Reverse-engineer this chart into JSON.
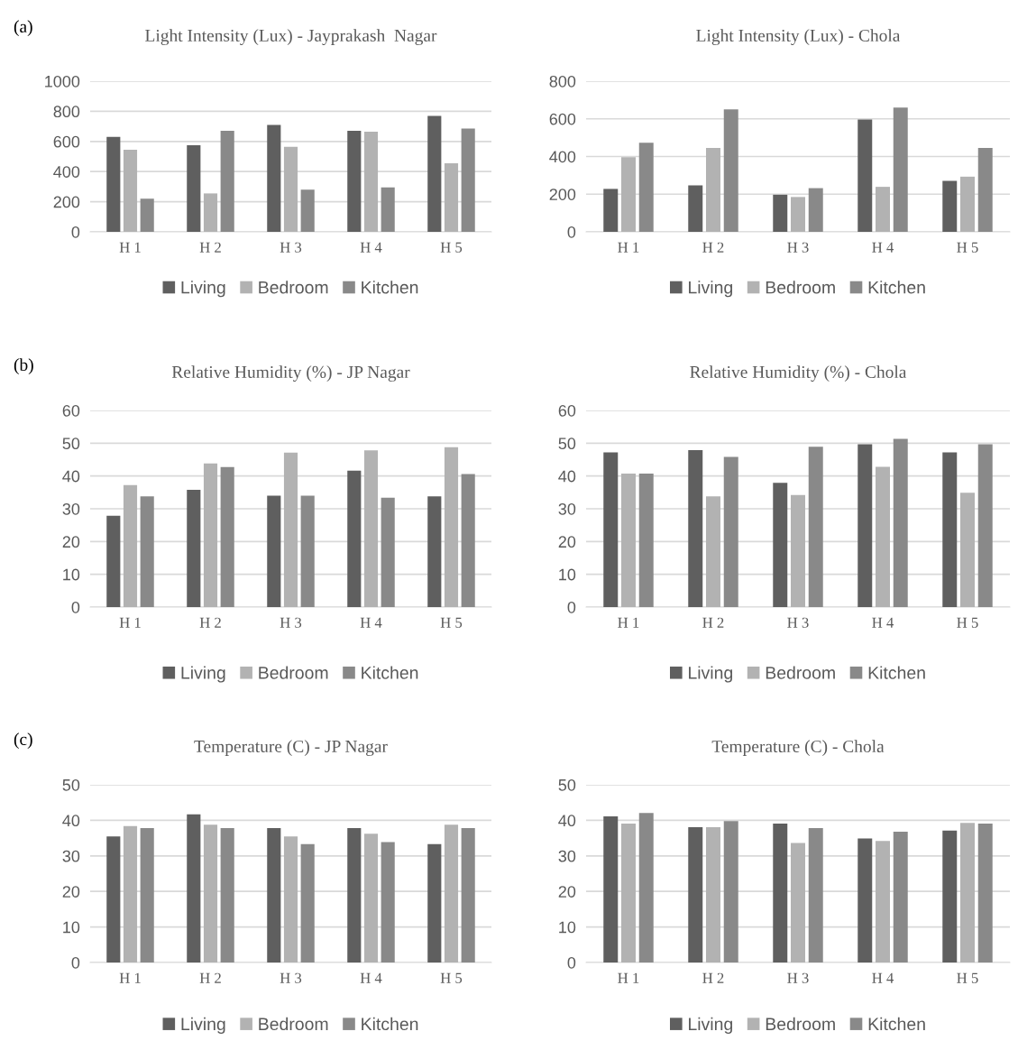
{
  "chart_data": [
    {
      "type": "bar",
      "title": "Light Intensity (Lux) - Jayprakash  Nagar",
      "annotations": [
        "(a)"
      ],
      "categories": [
        "H 1",
        "H 2",
        "H 3",
        "H 4",
        "H 5"
      ],
      "series": [
        {
          "name": "Living",
          "color": "#5f5f5f",
          "values": [
            630,
            575,
            710,
            670,
            770
          ]
        },
        {
          "name": "Bedroom",
          "color": "#b2b2b2",
          "values": [
            545,
            255,
            565,
            665,
            455
          ]
        },
        {
          "name": "Kitchen",
          "color": "#898989",
          "values": [
            220,
            670,
            280,
            295,
            685
          ]
        }
      ],
      "ylim": [
        0,
        1000
      ],
      "yticks": [
        0,
        200,
        400,
        600,
        800,
        1000
      ],
      "grid": "y",
      "legend": "bottom"
    },
    {
      "type": "bar",
      "title": "Light Intensity (Lux) - Chola",
      "categories": [
        "H 1",
        "H 2",
        "H 3",
        "H 4",
        "H 5"
      ],
      "series": [
        {
          "name": "Living",
          "color": "#5f5f5f",
          "values": [
            228,
            247,
            197,
            596,
            271
          ]
        },
        {
          "name": "Bedroom",
          "color": "#b2b2b2",
          "values": [
            396,
            445,
            185,
            239,
            293
          ]
        },
        {
          "name": "Kitchen",
          "color": "#898989",
          "values": [
            473,
            650,
            232,
            660,
            445
          ]
        }
      ],
      "ylim": [
        0,
        800
      ],
      "yticks": [
        0,
        200,
        400,
        600,
        800
      ],
      "grid": "y",
      "legend": "bottom"
    },
    {
      "type": "bar",
      "title": "Relative Humidity (%) - JP Nagar",
      "annotations": [
        "(b)"
      ],
      "categories": [
        "H 1",
        "H 2",
        "H 3",
        "H 4",
        "H 5"
      ],
      "series": [
        {
          "name": "Living",
          "color": "#5f5f5f",
          "values": [
            27.9,
            35.8,
            34.0,
            41.6,
            33.8
          ]
        },
        {
          "name": "Bedroom",
          "color": "#b2b2b2",
          "values": [
            37.2,
            43.8,
            47.1,
            47.8,
            48.8
          ]
        },
        {
          "name": "Kitchen",
          "color": "#898989",
          "values": [
            33.8,
            42.7,
            34.0,
            33.4,
            40.6
          ]
        }
      ],
      "ylim": [
        0,
        60
      ],
      "yticks": [
        0,
        10,
        20,
        30,
        40,
        50,
        60
      ],
      "grid": "y",
      "legend": "bottom"
    },
    {
      "type": "bar",
      "title": "Relative Humidity (%) - Chola",
      "categories": [
        "H 1",
        "H 2",
        "H 3",
        "H 4",
        "H 5"
      ],
      "series": [
        {
          "name": "Living",
          "color": "#5f5f5f",
          "values": [
            47.2,
            47.9,
            37.9,
            49.7,
            47.2
          ]
        },
        {
          "name": "Bedroom",
          "color": "#b2b2b2",
          "values": [
            40.7,
            33.8,
            34.2,
            42.8,
            34.9
          ]
        },
        {
          "name": "Kitchen",
          "color": "#898989",
          "values": [
            40.7,
            45.8,
            48.9,
            51.3,
            49.7
          ]
        }
      ],
      "ylim": [
        0,
        60
      ],
      "yticks": [
        0,
        10,
        20,
        30,
        40,
        50,
        60
      ],
      "grid": "y",
      "legend": "bottom"
    },
    {
      "type": "bar",
      "title": "Temperature (C) - JP Nagar",
      "annotations": [
        "(c)"
      ],
      "categories": [
        "H 1",
        "H 2",
        "H 3",
        "H 4",
        "H 5"
      ],
      "series": [
        {
          "name": "Living",
          "color": "#5f5f5f",
          "values": [
            35.5,
            41.7,
            37.8,
            37.8,
            33.3
          ]
        },
        {
          "name": "Bedroom",
          "color": "#b2b2b2",
          "values": [
            38.4,
            38.8,
            35.5,
            36.2,
            38.8
          ]
        },
        {
          "name": "Kitchen",
          "color": "#898989",
          "values": [
            37.8,
            37.8,
            33.3,
            33.9,
            37.8
          ]
        }
      ],
      "ylim": [
        0,
        50
      ],
      "yticks": [
        0,
        10,
        20,
        30,
        40,
        50
      ],
      "grid": "y",
      "legend": "bottom"
    },
    {
      "type": "bar",
      "title": "Temperature (C) - Chola",
      "categories": [
        "H 1",
        "H 2",
        "H 3",
        "H 4",
        "H 5"
      ],
      "series": [
        {
          "name": "Living",
          "color": "#5f5f5f",
          "values": [
            41.1,
            38.1,
            39.1,
            34.9,
            37.1
          ]
        },
        {
          "name": "Bedroom",
          "color": "#b2b2b2",
          "values": [
            39.1,
            38.1,
            33.6,
            34.2,
            39.3
          ]
        },
        {
          "name": "Kitchen",
          "color": "#898989",
          "values": [
            42.1,
            39.8,
            37.8,
            36.8,
            39.1
          ]
        }
      ],
      "ylim": [
        0,
        50
      ],
      "yticks": [
        0,
        10,
        20,
        30,
        40,
        50
      ],
      "grid": "y",
      "legend": "bottom"
    }
  ]
}
